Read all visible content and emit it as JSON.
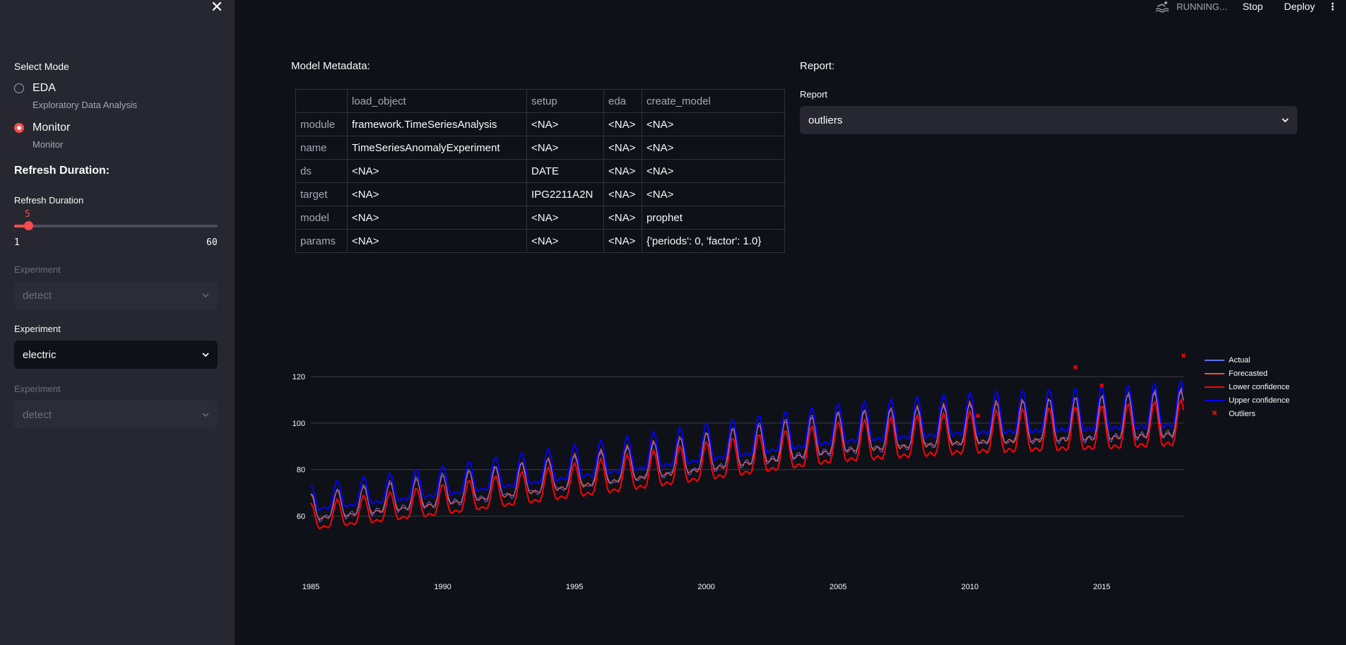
{
  "sidebar": {
    "mode_label": "Select Mode",
    "modes": [
      {
        "label": "EDA",
        "caption": "Exploratory Data Analysis",
        "selected": false
      },
      {
        "label": "Monitor",
        "caption": "Monitor",
        "selected": true
      }
    ],
    "refresh_heading": "Refresh Duration:",
    "slider": {
      "label": "Refresh Duration",
      "value": "5",
      "min": "1",
      "max": "60"
    },
    "experiments": [
      {
        "label": "Experiment",
        "value": "detect",
        "disabled": true
      },
      {
        "label": "Experiment",
        "value": "electric",
        "disabled": false
      },
      {
        "label": "Experiment",
        "value": "detect",
        "disabled": true
      }
    ]
  },
  "topbar": {
    "status": "RUNNING...",
    "stop": "Stop",
    "deploy": "Deploy"
  },
  "metadata": {
    "title": "Model Metadata:",
    "columns": [
      "",
      "load_object",
      "setup",
      "eda",
      "create_model"
    ],
    "rows": [
      [
        "module",
        "framework.TimeSeriesAnalysis",
        "<NA>",
        "<NA>",
        "<NA>"
      ],
      [
        "name",
        "TimeSeriesAnomalyExperiment",
        "<NA>",
        "<NA>",
        "<NA>"
      ],
      [
        "ds",
        "<NA>",
        "DATE",
        "<NA>",
        "<NA>"
      ],
      [
        "target",
        "<NA>",
        "IPG2211A2N",
        "<NA>",
        "<NA>"
      ],
      [
        "model",
        "<NA>",
        "<NA>",
        "<NA>",
        "prophet"
      ],
      [
        "params",
        "<NA>",
        "<NA>",
        "<NA>",
        "{'periods': 0, 'factor': 1.0}"
      ]
    ]
  },
  "report": {
    "title": "Report:",
    "label": "Report",
    "value": "outliers"
  },
  "chart_data": {
    "type": "line",
    "x_start": 1985,
    "x_end": 2018.1,
    "xticks": [
      "1985",
      "1990",
      "1995",
      "2000",
      "2005",
      "2010",
      "2015"
    ],
    "yticks": [
      "60",
      "80",
      "100",
      "120"
    ],
    "ylim": [
      45,
      130
    ],
    "grid": true,
    "legend_position": "right",
    "series": [
      {
        "name": "Actual",
        "color": "#636efa"
      },
      {
        "name": "Forecasted",
        "color": "#ef553b"
      },
      {
        "name": "Lower confidence",
        "color": "#ff0000"
      },
      {
        "name": "Upper confidence",
        "color": "#0000ff"
      }
    ],
    "outliers_name": "Outliers",
    "outliers_color": "#ff0000",
    "outliers": [
      [
        2010.3,
        103
      ],
      [
        2014.0,
        124
      ],
      [
        2015.0,
        116
      ],
      [
        2017.2,
        99
      ],
      [
        2018.1,
        129
      ]
    ],
    "trend": [
      [
        1985,
        62
      ],
      [
        1990,
        69
      ],
      [
        1995,
        77
      ],
      [
        2000,
        85
      ],
      [
        2005,
        93
      ],
      [
        2010,
        97
      ],
      [
        2015,
        99
      ],
      [
        2018.1,
        101
      ]
    ],
    "amplitude": [
      [
        1985,
        7
      ],
      [
        2000,
        10
      ],
      [
        2018.1,
        12
      ]
    ]
  }
}
